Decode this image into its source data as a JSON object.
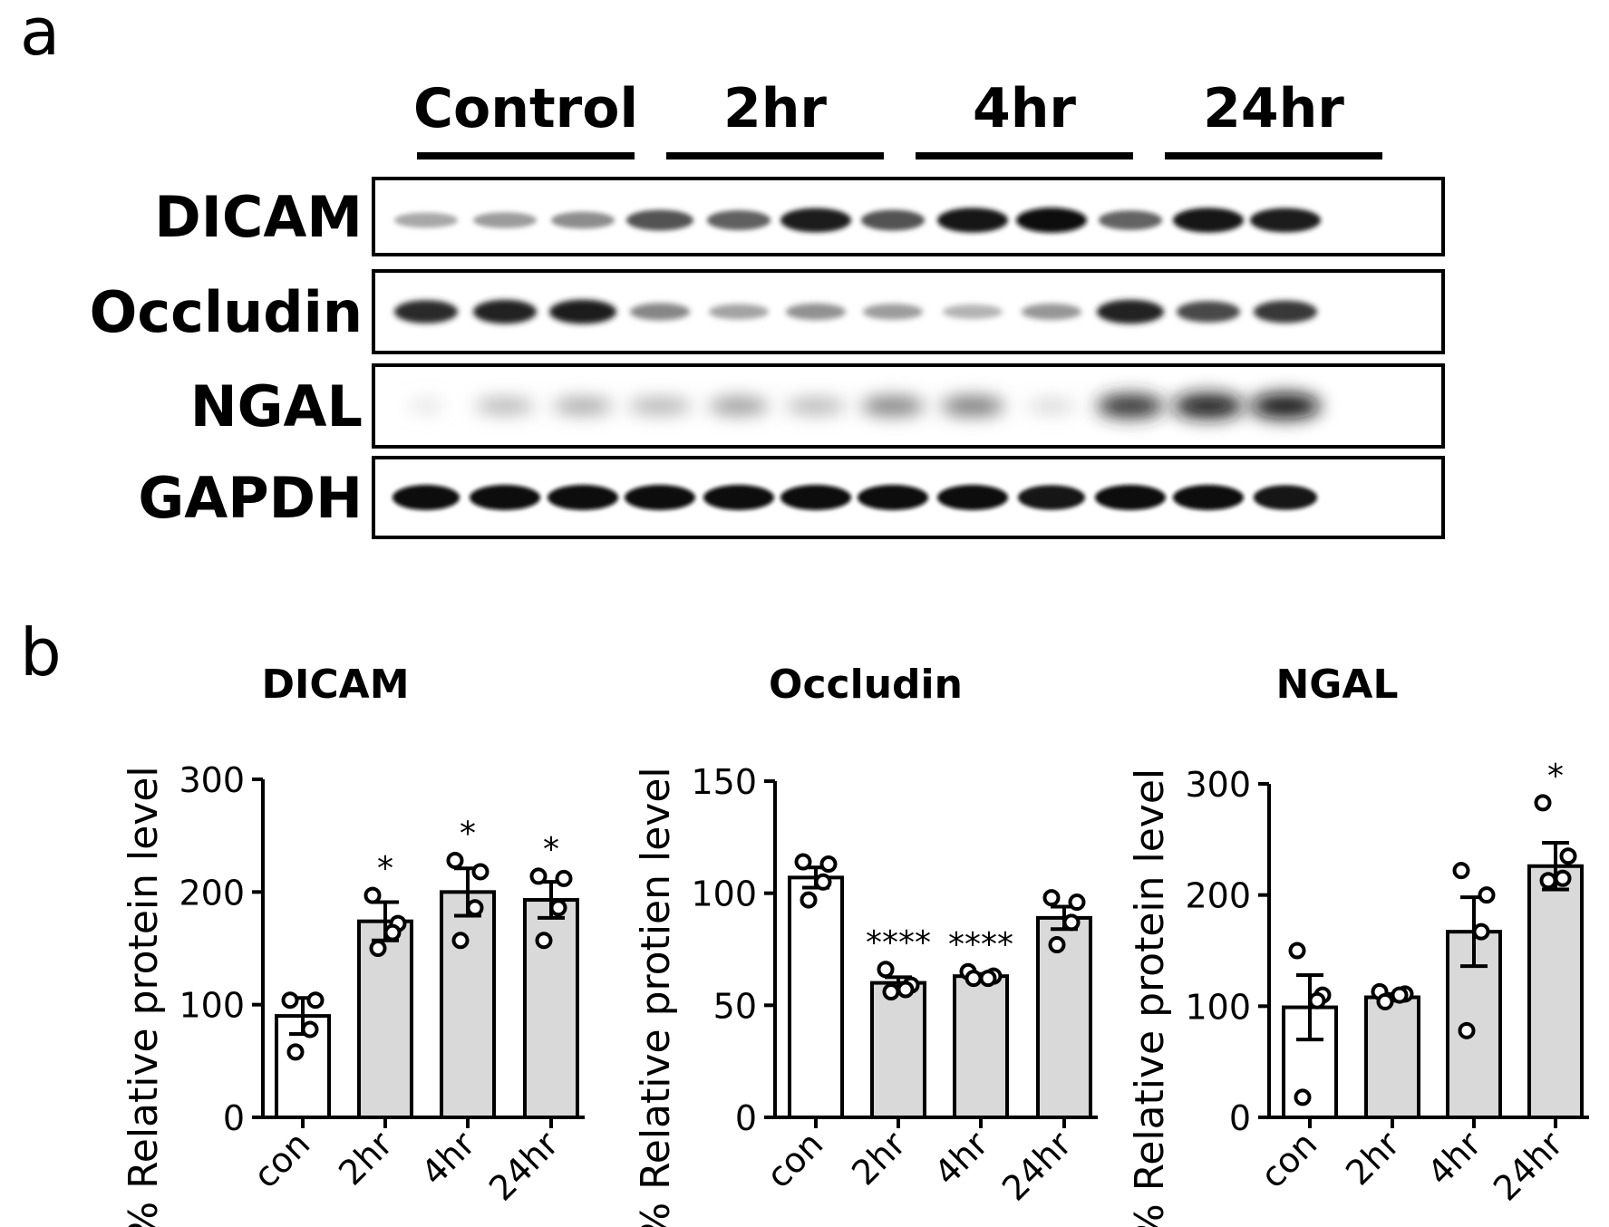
{
  "panel_a": {
    "letter": "a",
    "group_labels": [
      "Control",
      "2hr",
      "4hr",
      "24hr"
    ],
    "rows": [
      {
        "label": "DICAM",
        "intensities": [
          0.3,
          0.35,
          0.42,
          0.68,
          0.62,
          0.92,
          0.68,
          0.95,
          0.98,
          0.6,
          0.95,
          0.92
        ],
        "widths": [
          0.9,
          0.9,
          0.9,
          0.95,
          0.9,
          1.0,
          0.9,
          1.0,
          1.0,
          0.9,
          1.0,
          1.0
        ],
        "blur": 1.2
      },
      {
        "label": "Occludin",
        "intensities": [
          0.85,
          0.9,
          0.92,
          0.45,
          0.32,
          0.4,
          0.35,
          0.25,
          0.38,
          0.9,
          0.72,
          0.8
        ],
        "widths": [
          0.9,
          0.9,
          0.95,
          0.85,
          0.85,
          0.85,
          0.85,
          0.85,
          0.85,
          0.95,
          0.9,
          0.9
        ],
        "blur": 1.5
      },
      {
        "label": "NGAL",
        "intensities": [
          0.06,
          0.28,
          0.34,
          0.3,
          0.4,
          0.28,
          0.52,
          0.55,
          0.12,
          0.85,
          0.95,
          0.98
        ],
        "widths": [
          0.5,
          0.85,
          0.85,
          0.9,
          0.85,
          0.85,
          0.9,
          0.9,
          0.7,
          0.95,
          1.0,
          1.0
        ],
        "blur": 4.5
      },
      {
        "label": "GAPDH",
        "intensities": [
          1.0,
          1.0,
          1.0,
          1.0,
          1.0,
          1.0,
          1.0,
          1.0,
          0.95,
          1.0,
          1.0,
          0.95
        ],
        "widths": [
          0.95,
          1.0,
          1.0,
          1.0,
          1.0,
          1.0,
          1.0,
          1.0,
          0.95,
          1.0,
          1.0,
          0.9
        ],
        "blur": 1.0
      }
    ]
  },
  "panel_b": {
    "letter": "b",
    "ylabel": "% Relative protein level",
    "colors": {
      "control_fill": "#ffffff",
      "treated_fill": "#d9d9d9",
      "stroke": "#000000"
    }
  },
  "chart_data": [
    {
      "type": "bar",
      "title": "DICAM",
      "ylabel": "% Relative protein level",
      "categories": [
        "con",
        "2hr",
        "4hr",
        "24hr"
      ],
      "values": [
        90,
        174,
        200,
        193
      ],
      "sem": [
        16,
        17,
        21,
        16
      ],
      "points": [
        [
          104,
          104,
          78,
          58
        ],
        [
          197,
          172,
          164,
          150
        ],
        [
          228,
          218,
          186,
          157
        ],
        [
          214,
          212,
          186,
          157
        ]
      ],
      "significance": [
        "",
        "*",
        "*",
        "*"
      ],
      "ylim": [
        0,
        300
      ],
      "yticks": [
        0,
        100,
        200,
        300
      ]
    },
    {
      "type": "bar",
      "title": "Occludin",
      "ylabel": "% Relative protien level",
      "categories": [
        "con",
        "2hr",
        "4hr",
        "24hr"
      ],
      "values": [
        107,
        60,
        63,
        89
      ],
      "sem": [
        4.5,
        2.5,
        1,
        5
      ],
      "points": [
        [
          114,
          113,
          105,
          97
        ],
        [
          66,
          59,
          57,
          56
        ],
        [
          65,
          63,
          62,
          62
        ],
        [
          98,
          96,
          87,
          77
        ]
      ],
      "significance": [
        "",
        "****",
        "****",
        ""
      ],
      "ylim": [
        0,
        150
      ],
      "yticks": [
        0,
        50,
        100,
        150
      ]
    },
    {
      "type": "bar",
      "title": "NGAL",
      "ylabel": "% Relative protein level",
      "categories": [
        "con",
        "2hr",
        "4hr",
        "24hr"
      ],
      "values": [
        99,
        108,
        167,
        226
      ],
      "sem": [
        29,
        3,
        31,
        21
      ],
      "points": [
        [
          150,
          110,
          105,
          18
        ],
        [
          113,
          111,
          110,
          104
        ],
        [
          222,
          200,
          167,
          78
        ],
        [
          283,
          235,
          215,
          213
        ]
      ],
      "significance": [
        "",
        "",
        "",
        "*"
      ],
      "ylim": [
        0,
        300
      ],
      "yticks": [
        0,
        100,
        200,
        300
      ]
    }
  ]
}
